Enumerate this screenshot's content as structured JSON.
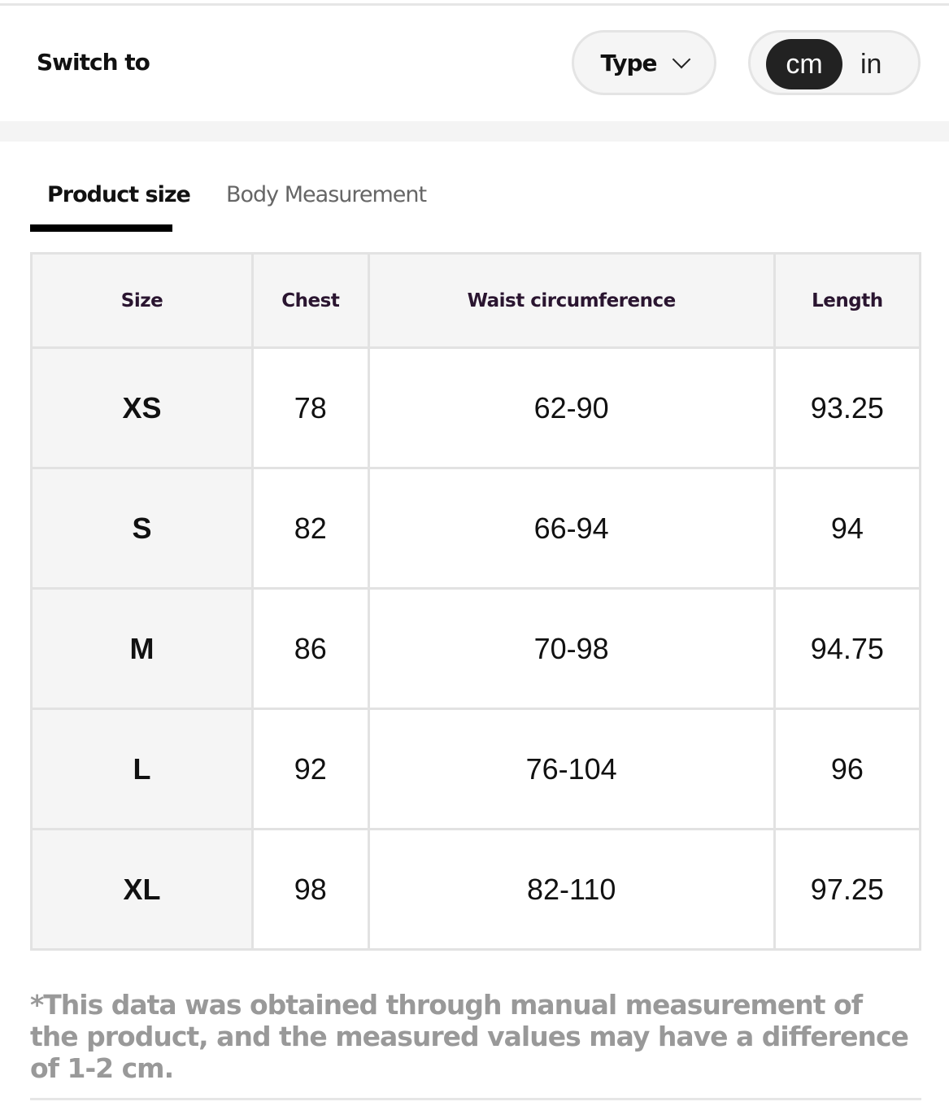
{
  "header": {
    "switch_label": "Switch to",
    "type_label": "Type",
    "units": {
      "active": "cm",
      "inactive": "in"
    }
  },
  "tabs": [
    {
      "label": "Product size",
      "active": true
    },
    {
      "label": "Body Measurement",
      "active": false
    }
  ],
  "table": {
    "columns": [
      "Size",
      "Chest",
      "Waist circumference",
      "Length"
    ],
    "rows": [
      [
        "XS",
        "78",
        "62-90",
        "93.25"
      ],
      [
        "S",
        "82",
        "66-94",
        "94"
      ],
      [
        "M",
        "86",
        "70-98",
        "94.75"
      ],
      [
        "L",
        "92",
        "76-104",
        "96"
      ],
      [
        "XL",
        "98",
        "82-110",
        "97.25"
      ]
    ]
  },
  "note": "*This data was obtained through manual measurement of the product, and the measured values may have a difference of 1-2 cm."
}
